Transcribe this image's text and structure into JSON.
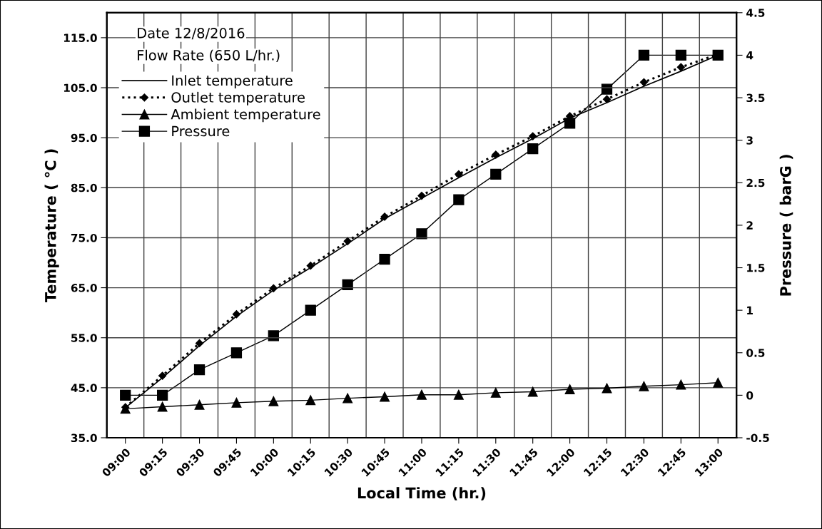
{
  "chart_data": {
    "type": "line",
    "xlabel": "Local Time (hr.)",
    "ylabel": "Temperature ( °C )",
    "y2label": "Pressure ( barG )",
    "categories": [
      "09:00",
      "09:15",
      "09:30",
      "09:45",
      "10:00",
      "10:15",
      "10:30",
      "10:45",
      "11:00",
      "11:15",
      "11:30",
      "11:45",
      "12:00",
      "12:15",
      "12:30",
      "12:45",
      "13:00"
    ],
    "series": [
      {
        "name": "Inlet temperature",
        "color": "#000000",
        "line_style": "solid",
        "marker": "none",
        "values": [
          41.0,
          47.0,
          53.4,
          59.3,
          64.5,
          69.0,
          73.8,
          78.8,
          82.9,
          87.0,
          91.0,
          94.8,
          98.9,
          102.0,
          105.3,
          108.3,
          111.5
        ]
      },
      {
        "name": "Outlet temperature",
        "color": "#000000",
        "line_style": "dotted",
        "marker": "diamond",
        "values": [
          41.1,
          47.4,
          53.9,
          59.7,
          64.9,
          69.4,
          74.3,
          79.2,
          83.4,
          87.7,
          91.6,
          95.3,
          99.3,
          102.7,
          106.1,
          109.1,
          111.7
        ]
      },
      {
        "name": "Ambient temperature",
        "color": "#000000",
        "line_style": "solid",
        "marker": "triangle",
        "values": [
          40.8,
          41.2,
          41.6,
          42.0,
          42.3,
          42.5,
          42.9,
          43.2,
          43.6,
          43.6,
          44.0,
          44.2,
          44.7,
          44.9,
          45.3,
          45.6,
          46.0
        ]
      },
      {
        "name": "Pressure",
        "color": "#000000",
        "line_style": "solid",
        "marker": "square",
        "axis": "y2",
        "values": [
          0,
          0,
          0.3,
          0.5,
          0.7,
          1.0,
          1.3,
          1.6,
          1.9,
          2.3,
          2.6,
          2.9,
          3.2,
          3.6,
          4.0,
          4.0,
          4.0
        ]
      }
    ],
    "ylim": [
      35,
      120
    ],
    "yticks": [
      {
        "value": 35,
        "label": "35.0"
      },
      {
        "value": 45,
        "label": "45.0"
      },
      {
        "value": 55,
        "label": "55.0"
      },
      {
        "value": 65,
        "label": "65.0"
      },
      {
        "value": 75,
        "label": "75.0"
      },
      {
        "value": 85,
        "label": "85.0"
      },
      {
        "value": 95,
        "label": "95.0"
      },
      {
        "value": 105,
        "label": "105.0"
      },
      {
        "value": 115,
        "label": "115.0"
      }
    ],
    "y2lim": [
      -0.5,
      4.5
    ],
    "y2ticks": [
      -0.5,
      0,
      0.5,
      1,
      1.5,
      2,
      2.5,
      3,
      3.5,
      4,
      4.5
    ],
    "grid": true,
    "legend": "top left",
    "annotations": [
      "Date 12/8/2016",
      "Flow Rate (650 L/hr.)"
    ]
  }
}
